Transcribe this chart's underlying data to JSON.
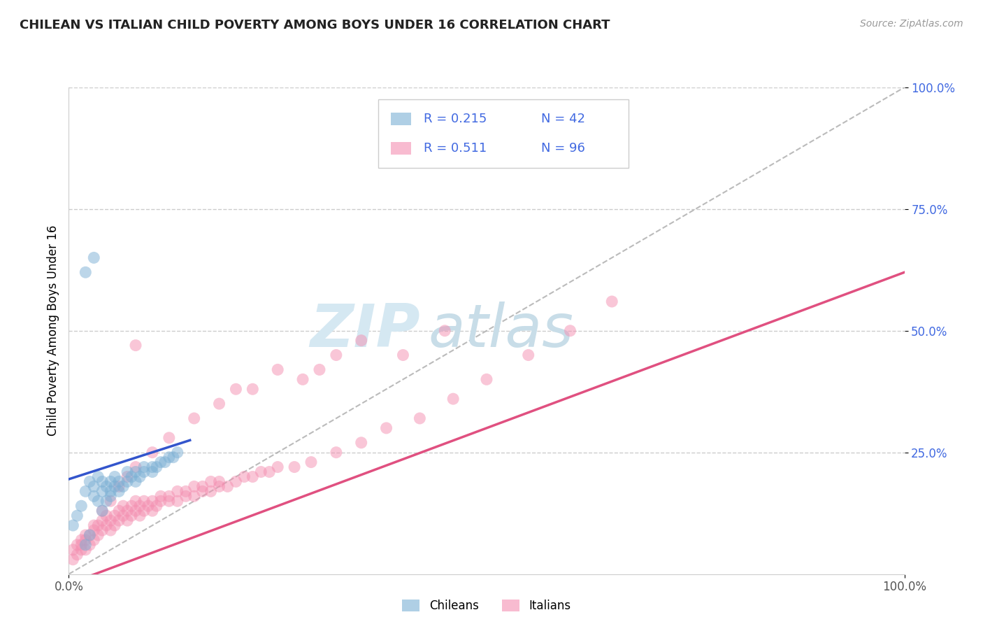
{
  "title": "CHILEAN VS ITALIAN CHILD POVERTY AMONG BOYS UNDER 16 CORRELATION CHART",
  "source": "Source: ZipAtlas.com",
  "ylabel": "Child Poverty Among Boys Under 16",
  "xlim": [
    0,
    1
  ],
  "ylim": [
    0,
    1
  ],
  "xticks": [
    0,
    1.0
  ],
  "xticklabels": [
    "0.0%",
    "100.0%"
  ],
  "yticks": [
    0.25,
    0.5,
    0.75,
    1.0
  ],
  "yticklabels": [
    "25.0%",
    "50.0%",
    "75.0%",
    "100.0%"
  ],
  "chilean_color": "#7bafd4",
  "italian_color": "#f48fb1",
  "blue_line_color": "#3355cc",
  "pink_line_color": "#e05080",
  "ref_line_color": "#aaaaaa",
  "watermark_zip": "ZIP",
  "watermark_atlas": "atlas",
  "watermark_color_zip": "#d5e8f2",
  "watermark_color_atlas": "#c8dde8",
  "legend_text_color": "#4169e1",
  "legend_r1": "R = 0.215",
  "legend_n1": "N = 42",
  "legend_r2": "R = 0.511",
  "legend_n2": "N = 96",
  "bottom_legend": [
    "Chileans",
    "Italians"
  ],
  "chileans_scatter_x": [
    0.02,
    0.025,
    0.03,
    0.035,
    0.04,
    0.04,
    0.045,
    0.05,
    0.05,
    0.055,
    0.055,
    0.06,
    0.06,
    0.065,
    0.07,
    0.07,
    0.075,
    0.08,
    0.08,
    0.085,
    0.09,
    0.09,
    0.1,
    0.1,
    0.105,
    0.11,
    0.115,
    0.12,
    0.125,
    0.13,
    0.005,
    0.01,
    0.015,
    0.02,
    0.025,
    0.03,
    0.035,
    0.04,
    0.045,
    0.05,
    0.02,
    0.03
  ],
  "chileans_scatter_y": [
    0.17,
    0.19,
    0.18,
    0.2,
    0.17,
    0.19,
    0.18,
    0.17,
    0.19,
    0.18,
    0.2,
    0.17,
    0.19,
    0.18,
    0.19,
    0.21,
    0.2,
    0.19,
    0.21,
    0.2,
    0.21,
    0.22,
    0.21,
    0.22,
    0.22,
    0.23,
    0.23,
    0.24,
    0.24,
    0.25,
    0.1,
    0.12,
    0.14,
    0.06,
    0.08,
    0.16,
    0.15,
    0.13,
    0.15,
    0.16,
    0.62,
    0.65
  ],
  "italians_scatter_x": [
    0.005,
    0.01,
    0.015,
    0.015,
    0.02,
    0.02,
    0.025,
    0.025,
    0.03,
    0.03,
    0.035,
    0.035,
    0.04,
    0.04,
    0.045,
    0.045,
    0.05,
    0.05,
    0.055,
    0.055,
    0.06,
    0.06,
    0.065,
    0.065,
    0.07,
    0.07,
    0.075,
    0.075,
    0.08,
    0.08,
    0.085,
    0.085,
    0.09,
    0.09,
    0.095,
    0.1,
    0.1,
    0.105,
    0.11,
    0.11,
    0.12,
    0.12,
    0.13,
    0.13,
    0.14,
    0.14,
    0.15,
    0.15,
    0.16,
    0.16,
    0.17,
    0.17,
    0.18,
    0.18,
    0.19,
    0.2,
    0.21,
    0.22,
    0.23,
    0.24,
    0.25,
    0.27,
    0.29,
    0.32,
    0.35,
    0.38,
    0.42,
    0.46,
    0.5,
    0.55,
    0.6,
    0.65,
    0.4,
    0.45,
    0.3,
    0.35,
    0.28,
    0.32,
    0.2,
    0.25,
    0.22,
    0.18,
    0.15,
    0.12,
    0.1,
    0.08,
    0.07,
    0.06,
    0.05,
    0.04,
    0.03,
    0.02,
    0.015,
    0.01,
    0.005,
    0.08
  ],
  "italians_scatter_y": [
    0.03,
    0.04,
    0.05,
    0.06,
    0.05,
    0.07,
    0.06,
    0.08,
    0.07,
    0.09,
    0.08,
    0.1,
    0.09,
    0.11,
    0.1,
    0.12,
    0.09,
    0.11,
    0.1,
    0.12,
    0.11,
    0.13,
    0.12,
    0.14,
    0.11,
    0.13,
    0.12,
    0.14,
    0.13,
    0.15,
    0.12,
    0.14,
    0.13,
    0.15,
    0.14,
    0.13,
    0.15,
    0.14,
    0.15,
    0.16,
    0.15,
    0.16,
    0.15,
    0.17,
    0.16,
    0.17,
    0.16,
    0.18,
    0.17,
    0.18,
    0.17,
    0.19,
    0.18,
    0.19,
    0.18,
    0.19,
    0.2,
    0.2,
    0.21,
    0.21,
    0.22,
    0.22,
    0.23,
    0.25,
    0.27,
    0.3,
    0.32,
    0.36,
    0.4,
    0.45,
    0.5,
    0.56,
    0.45,
    0.5,
    0.42,
    0.48,
    0.4,
    0.45,
    0.38,
    0.42,
    0.38,
    0.35,
    0.32,
    0.28,
    0.25,
    0.22,
    0.2,
    0.18,
    0.15,
    0.13,
    0.1,
    0.08,
    0.07,
    0.06,
    0.05,
    0.47
  ],
  "blue_line_x": [
    0.0,
    0.145
  ],
  "blue_line_y": [
    0.195,
    0.275
  ],
  "pink_line_x": [
    0.0,
    1.0
  ],
  "pink_line_y": [
    -0.02,
    0.62
  ],
  "ref_line_x": [
    0.0,
    1.0
  ],
  "ref_line_y": [
    0.0,
    1.0
  ]
}
